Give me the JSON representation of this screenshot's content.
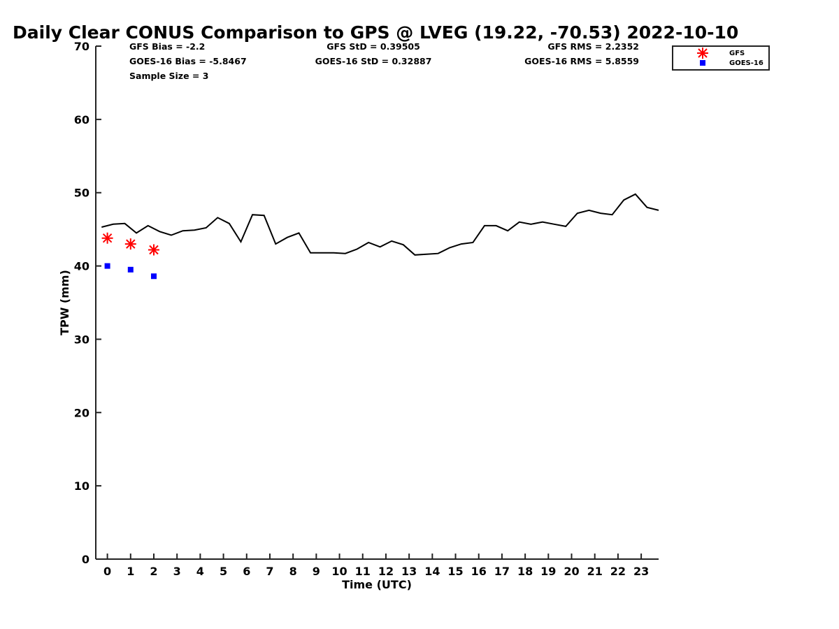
{
  "chart_data": {
    "type": "line",
    "title": "Daily Clear CONUS Comparison to GPS @ LVEG (19.22, -70.53) 2022-10-10",
    "xlabel": "Time (UTC)",
    "ylabel": "TPW (mm)",
    "xlim": [
      -0.5,
      23.75
    ],
    "ylim": [
      0,
      70
    ],
    "xticks": [
      "0",
      "1",
      "2",
      "3",
      "4",
      "5",
      "6",
      "7",
      "8",
      "9",
      "10",
      "11",
      "12",
      "13",
      "14",
      "15",
      "16",
      "17",
      "18",
      "19",
      "20",
      "21",
      "22",
      "23"
    ],
    "yticks": [
      "0",
      "10",
      "20",
      "30",
      "40",
      "50",
      "60",
      "70"
    ],
    "stats": {
      "gfs_bias": "GFS Bias = -2.2",
      "goes_bias": "GOES-16 Bias = -5.8467",
      "sample_size": "Sample Size = 3",
      "gfs_std": "GFS StD = 0.39505",
      "goes_std": "GOES-16 StD = 0.32887",
      "gfs_rms": "GFS RMS = 2.2352",
      "goes_rms": "GOES-16 RMS = 5.8559"
    },
    "legend": {
      "position": "top-right",
      "entries": [
        {
          "label": "GFS",
          "marker": "asterisk",
          "color": "#ff0000"
        },
        {
          "label": "GOES-16",
          "marker": "square",
          "color": "#0000ff"
        }
      ]
    },
    "series": [
      {
        "name": "GPS",
        "color": "#000000",
        "style": "line",
        "x": [
          -0.25,
          0.25,
          0.75,
          1.25,
          1.75,
          2.25,
          2.75,
          3.25,
          3.75,
          4.25,
          4.75,
          5.25,
          5.75,
          6.25,
          6.75,
          7.25,
          7.75,
          8.25,
          8.75,
          9.25,
          9.75,
          10.25,
          10.75,
          11.25,
          11.75,
          12.25,
          12.75,
          13.25,
          13.75,
          14.25,
          14.75,
          15.25,
          15.75,
          16.25,
          16.75,
          17.25,
          17.75,
          18.25,
          18.75,
          19.25,
          19.75,
          20.25,
          20.75,
          21.25,
          21.75,
          22.25,
          22.75,
          23.25,
          23.75
        ],
        "y": [
          45.3,
          45.7,
          45.8,
          44.5,
          45.5,
          44.7,
          44.2,
          44.8,
          44.9,
          45.2,
          46.6,
          45.8,
          43.3,
          47.0,
          46.9,
          43.0,
          43.9,
          44.5,
          41.8,
          41.8,
          41.8,
          41.7,
          42.3,
          43.2,
          42.6,
          43.4,
          42.9,
          41.5,
          41.6,
          41.7,
          42.5,
          43.0,
          43.2,
          45.5,
          45.5,
          44.8,
          46.0,
          45.7,
          46.0,
          45.7,
          45.4,
          47.2,
          47.6,
          47.2,
          47.0,
          49.0,
          49.8,
          48.0,
          47.6
        ]
      },
      {
        "name": "GFS",
        "color": "#ff0000",
        "style": "asterisk",
        "x": [
          0,
          1,
          2
        ],
        "y": [
          43.8,
          43.0,
          42.2
        ]
      },
      {
        "name": "GOES-16",
        "color": "#0000ff",
        "style": "square",
        "x": [
          0,
          1,
          2
        ],
        "y": [
          40.0,
          39.5,
          38.6
        ]
      }
    ]
  }
}
